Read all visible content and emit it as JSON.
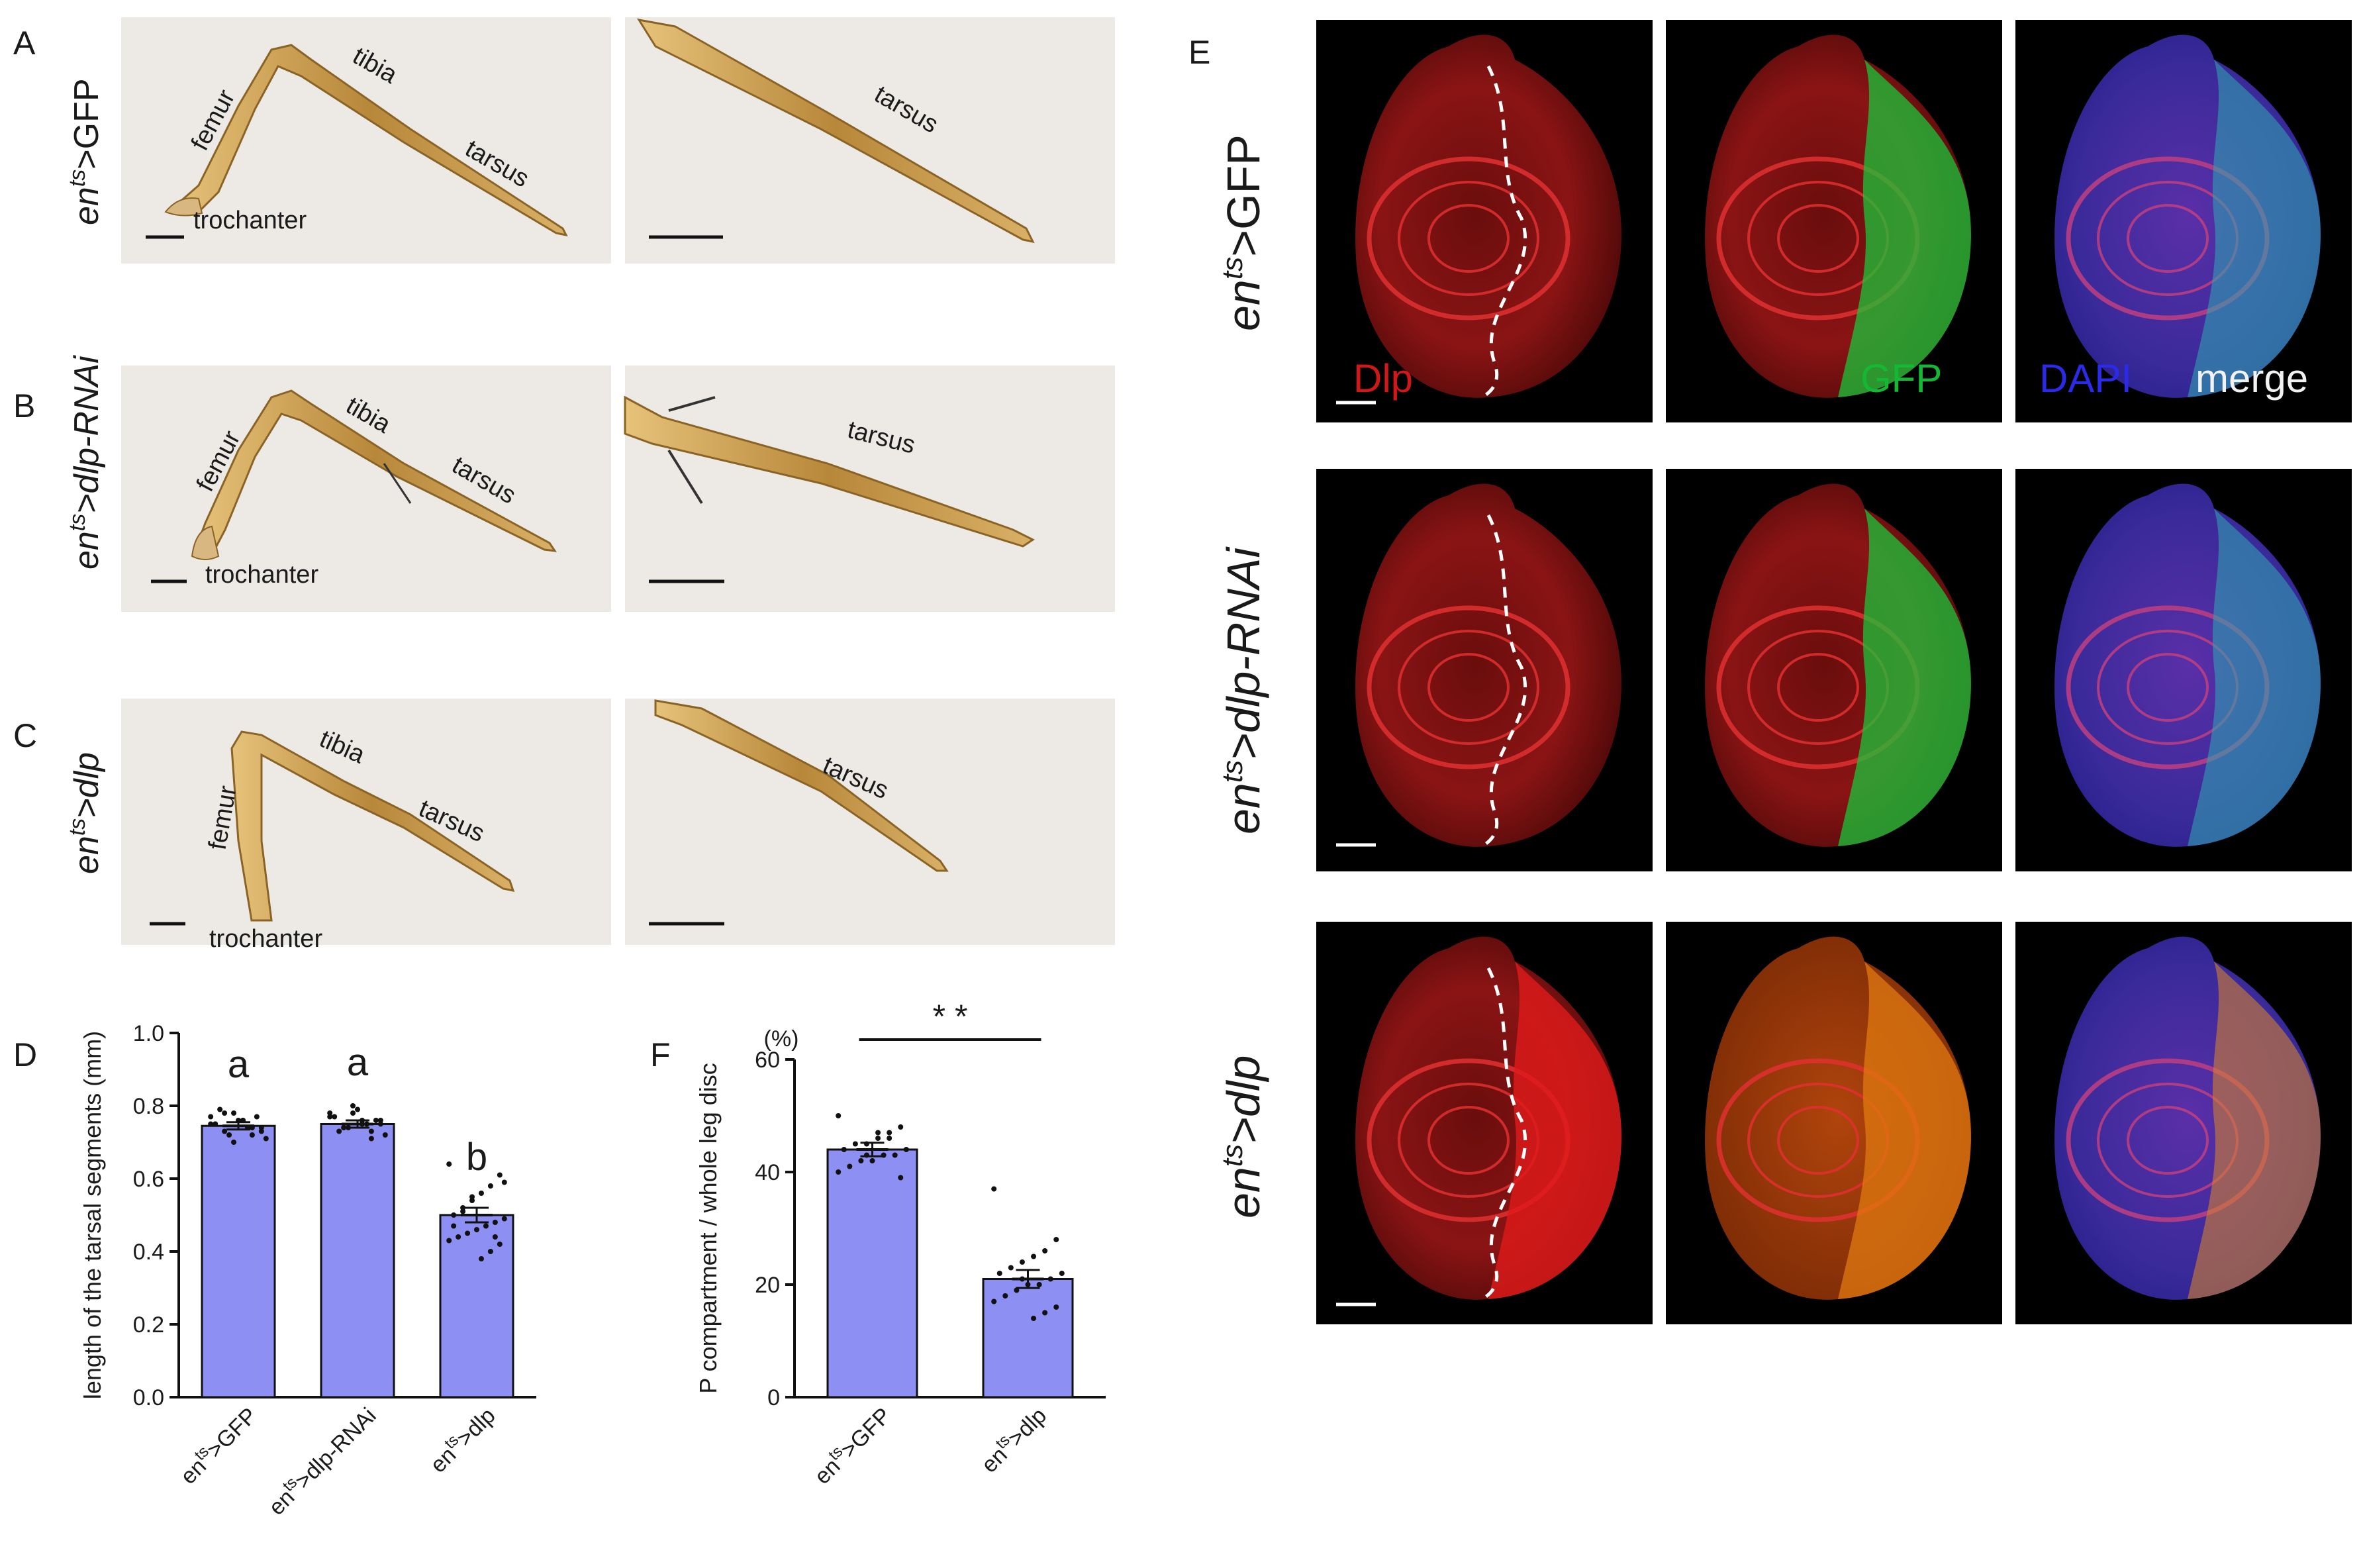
{
  "panel_letters": {
    "A": "A",
    "B": "B",
    "C": "C",
    "D": "D",
    "E": "E",
    "F": "F"
  },
  "genotypes": {
    "gfp": {
      "base": "en",
      "sup": "ts",
      "rest": ">GFP"
    },
    "rnai": {
      "base": "en",
      "sup": "ts",
      "rest": ">dlp-RNAi"
    },
    "dlp": {
      "base": "en",
      "sup": "ts",
      "rest": ">dlp"
    }
  },
  "leg_labels": {
    "femur": "femur",
    "tibia": "tibia",
    "tarsus": "tarsus",
    "trochanter": "trochanter"
  },
  "channel_labels": {
    "dlp": "Dlp",
    "gfp": "GFP",
    "dapi": "DAPI",
    "merge": "merge"
  },
  "colors": {
    "bar_fill": "#8d8ff2",
    "dlp_red": "#d81f1f",
    "gfp_green": "#19c43a",
    "dapi_blue": "#2a2ae0",
    "leg_gold": "#c49a4a"
  },
  "chart_data": [
    {
      "type": "bar",
      "panel": "D",
      "ylabel": "length of the tarsal segments (mm)",
      "categories_tex": [
        {
          "base": "en",
          "sup": "ts",
          "rest": ">GFP"
        },
        {
          "base": "en",
          "sup": "ts",
          "rest": ">dlp-RNAi"
        },
        {
          "base": "en",
          "sup": "ts",
          "rest": ">dlp"
        }
      ],
      "values": [
        0.745,
        0.75,
        0.5
      ],
      "sem": [
        0.01,
        0.01,
        0.02
      ],
      "ylim": [
        0,
        1.0
      ],
      "yticks": [
        "0.0",
        "0.2",
        "0.4",
        "0.6",
        "0.8",
        "1.0"
      ],
      "yticks_values": [
        0,
        0.2,
        0.4,
        0.6,
        0.8,
        1.0
      ],
      "significance_letters": [
        "a",
        "a",
        "b"
      ],
      "points": [
        [
          0.77,
          0.74,
          0.72,
          0.76,
          0.78,
          0.73,
          0.75,
          0.71,
          0.77,
          0.74,
          0.76,
          0.72,
          0.79,
          0.75,
          0.73,
          0.74,
          0.76,
          0.7,
          0.78,
          0.75
        ],
        [
          0.78,
          0.76,
          0.73,
          0.75,
          0.8,
          0.74,
          0.77,
          0.72,
          0.76,
          0.75,
          0.79,
          0.74,
          0.73,
          0.77,
          0.75,
          0.71,
          0.76,
          0.78
        ],
        [
          0.64,
          0.61,
          0.58,
          0.56,
          0.54,
          0.52,
          0.5,
          0.49,
          0.48,
          0.47,
          0.46,
          0.45,
          0.44,
          0.43,
          0.42,
          0.4,
          0.38,
          0.55,
          0.51,
          0.47,
          0.59,
          0.44
        ]
      ]
    },
    {
      "type": "bar",
      "panel": "F",
      "ylabel": "P compartment / whole leg disc",
      "yunit": "(%)",
      "categories_tex": [
        {
          "base": "en",
          "sup": "ts",
          "rest": ">GFP"
        },
        {
          "base": "en",
          "sup": "ts",
          "rest": ">dlp"
        }
      ],
      "values": [
        44,
        21
      ],
      "sem": [
        1.2,
        1.6
      ],
      "ylim": [
        0,
        60
      ],
      "yticks": [
        "0",
        "20",
        "40",
        "60"
      ],
      "yticks_values": [
        0,
        20,
        40,
        60
      ],
      "significance": "* *",
      "points": [
        [
          50,
          48,
          47,
          46,
          45,
          45,
          44,
          44,
          43,
          43,
          42,
          42,
          41,
          40,
          39,
          46,
          47,
          43
        ],
        [
          37,
          28,
          26,
          25,
          24,
          23,
          22,
          22,
          21,
          20,
          20,
          19,
          18,
          17,
          16,
          15,
          14,
          21
        ]
      ]
    }
  ]
}
